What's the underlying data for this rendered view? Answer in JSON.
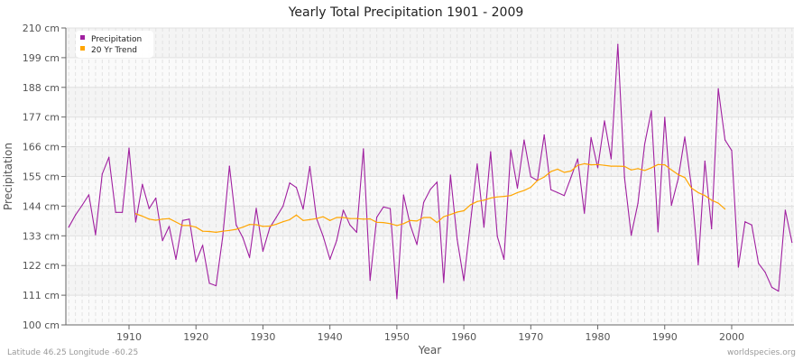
{
  "chart_data": {
    "type": "line",
    "title": "Yearly Total Precipitation 1901 - 2009",
    "xlabel": "Year",
    "ylabel": "Precipitation",
    "xlim": [
      1901,
      2009
    ],
    "ylim": [
      100,
      210
    ],
    "y_ticks": [
      "100 cm",
      "111 cm",
      "122 cm",
      "133 cm",
      "144 cm",
      "155 cm",
      "166 cm",
      "177 cm",
      "188 cm",
      "199 cm",
      "210 cm"
    ],
    "x_ticks": [
      "1910",
      "1920",
      "1930",
      "1940",
      "1950",
      "1960",
      "1970",
      "1980",
      "1990",
      "2000"
    ],
    "grid": true,
    "legend_position": "top-left",
    "series": [
      {
        "name": "Precipitation",
        "color": "#a020a0",
        "start_year": 1901,
        "values": [
          136.2,
          140.7,
          144.3,
          148.2,
          133.4,
          155.9,
          162.1,
          141.7,
          141.7,
          165.5,
          138.1,
          152.1,
          143.1,
          147.0,
          131.2,
          136.5,
          124.3,
          138.7,
          139.2,
          123.4,
          129.5,
          115.4,
          114.5,
          132.8,
          158.8,
          137.0,
          132.3,
          125.0,
          143.2,
          127.3,
          135.9,
          139.9,
          144.0,
          152.6,
          150.9,
          142.9,
          158.7,
          139.5,
          132.8,
          124.3,
          131.2,
          142.5,
          137.0,
          134.3,
          165.2,
          116.5,
          139.9,
          143.7,
          143.1,
          109.7,
          148.1,
          137.0,
          129.8,
          145.4,
          150.2,
          152.9,
          115.7,
          155.5,
          131.7,
          116.4,
          138.0,
          159.6,
          136.2,
          164.1,
          132.8,
          124.3,
          164.8,
          150.7,
          168.5,
          154.9,
          153.5,
          170.4,
          150.1,
          149.0,
          147.9,
          154.7,
          161.5,
          141.4,
          169.4,
          158.2,
          175.6,
          161.5,
          203.9,
          154.6,
          133.2,
          145.1,
          166.9,
          179.3,
          134.5,
          176.9,
          144.3,
          154.0,
          169.6,
          151.2,
          122.3,
          160.7,
          135.6,
          187.5,
          168.5,
          164.6,
          121.4,
          138.2,
          137.0,
          122.8,
          119.5,
          113.9,
          112.5,
          142.5,
          130.6
        ]
      },
      {
        "name": "20 Yr Trend",
        "color": "#ffa500",
        "start_year": 1911,
        "values": [
          141.2,
          140.3,
          139.2,
          138.8,
          139.2,
          139.4,
          138.1,
          136.8,
          136.8,
          136.2,
          134.7,
          134.6,
          134.3,
          134.7,
          135.0,
          135.4,
          136.2,
          137.2,
          137.1,
          136.5,
          136.6,
          137.3,
          138.2,
          139.0,
          140.7,
          138.7,
          139.0,
          139.4,
          140.1,
          138.7,
          139.8,
          139.8,
          139.4,
          139.4,
          139.2,
          139.3,
          138.0,
          137.9,
          137.5,
          136.8,
          137.5,
          138.7,
          138.5,
          139.8,
          139.8,
          137.9,
          140.1,
          140.9,
          141.8,
          142.3,
          144.5,
          145.7,
          146.2,
          147.0,
          147.4,
          147.6,
          147.9,
          149.0,
          149.8,
          151.0,
          153.5,
          154.8,
          156.8,
          157.7,
          156.5,
          157.0,
          159.1,
          159.7,
          159.3,
          159.4,
          159.1,
          158.8,
          158.8,
          158.7,
          157.4,
          157.9,
          157.2,
          158.2,
          159.4,
          159.3,
          157.4,
          155.7,
          154.6,
          150.7,
          149.0,
          147.9,
          146.2,
          145.1,
          142.9
        ]
      }
    ]
  },
  "footer": {
    "location": "Latitude 46.25 Longitude -60.25",
    "source": "worldspecies.org"
  }
}
